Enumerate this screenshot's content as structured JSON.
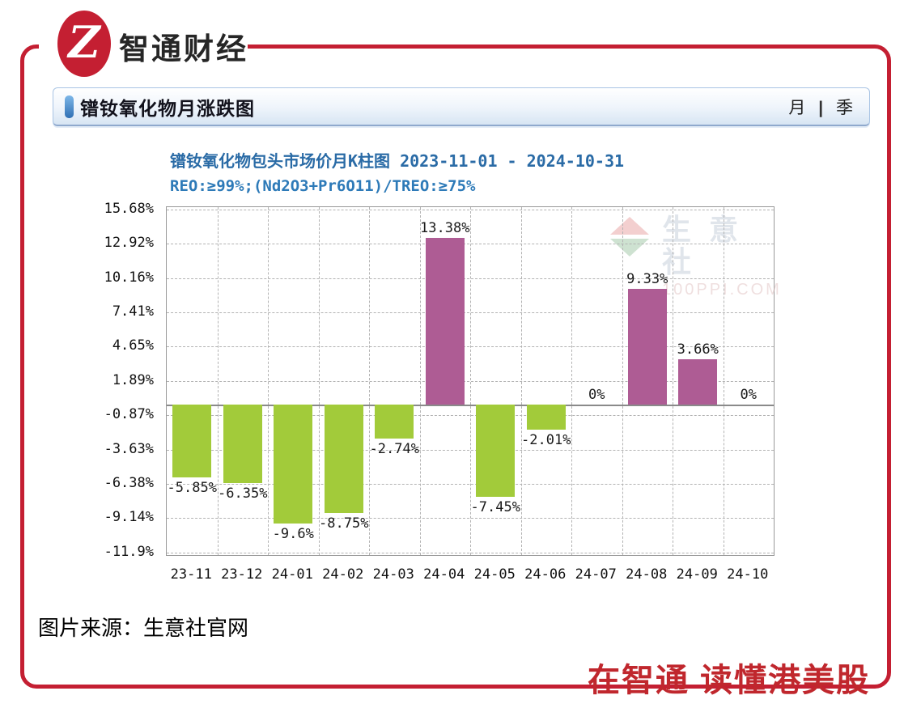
{
  "brand": {
    "logo_monogram": "Z",
    "name": "智通财经",
    "frame_color": "#c41f32"
  },
  "panel": {
    "title": "镨钕氧化物月涨跌图",
    "period_month": "月",
    "period_separator": "|",
    "period_quarter": "季"
  },
  "chart_header": {
    "title": "镨钕氧化物包头市场价月K柱图  2023-11-01 - 2024-10-31",
    "spec": "REO:≥99%;(Nd2O3+Pr6O11)/TREO:≥75%"
  },
  "watermark": {
    "name": "生意社",
    "site": "100PPI.COM"
  },
  "chart_data": {
    "type": "bar",
    "title": "镨钕氧化物包头市场价月K柱图 2023-11-01 - 2024-10-31",
    "categories": [
      "23-11",
      "23-12",
      "24-01",
      "24-02",
      "24-03",
      "24-04",
      "24-05",
      "24-06",
      "24-07",
      "24-08",
      "24-09",
      "24-10"
    ],
    "values": [
      -5.85,
      -6.35,
      -9.6,
      -8.75,
      -2.74,
      13.38,
      -7.45,
      -2.01,
      0,
      9.33,
      3.66,
      0
    ],
    "labels": [
      "-5.85%",
      "-6.35%",
      "-9.6%",
      "-8.75%",
      "-2.74%",
      "13.38%",
      "-7.45%",
      "-2.01%",
      "0%",
      "9.33%",
      "3.66%",
      "0%"
    ],
    "y_ticks": [
      "15.68%",
      "12.92%",
      "10.16%",
      "7.41%",
      "4.65%",
      "1.89%",
      "-0.87%",
      "-3.63%",
      "-6.38%",
      "-9.14%",
      "-11.9%"
    ],
    "y_tick_values": [
      15.68,
      12.92,
      10.16,
      7.41,
      4.65,
      1.89,
      -0.87,
      -3.63,
      -6.38,
      -9.14,
      -11.9
    ],
    "ylim": [
      -13.28,
      17.06
    ],
    "grid": true,
    "legend": "none",
    "positive_color": "#ae5c94",
    "negative_color": "#a2cb3a",
    "xlabel": "",
    "ylabel": ""
  },
  "source_caption": "图片来源：生意社官网",
  "slogan": "在智通 读懂港美股"
}
